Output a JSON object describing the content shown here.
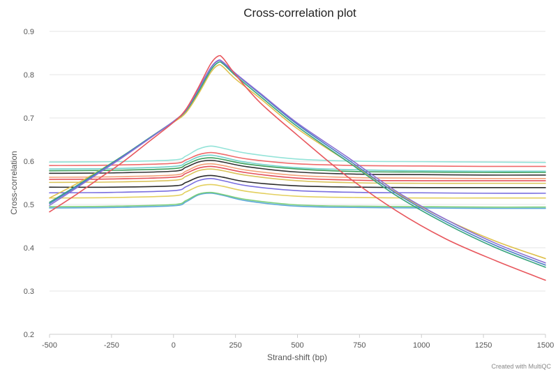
{
  "chart_data": {
    "type": "line",
    "title": "Cross-correlation plot",
    "xlabel": "Strand-shift (bp)",
    "ylabel": "Cross-correlation",
    "xlim": [
      -500,
      1500
    ],
    "ylim": [
      0.2,
      0.9
    ],
    "x_ticks": [
      "-500",
      "-250",
      "0",
      "250",
      "500",
      "750",
      "1000",
      "1250",
      "1500"
    ],
    "y_ticks": [
      "0.2",
      "0.3",
      "0.4",
      "0.5",
      "0.6",
      "0.7",
      "0.8",
      "0.9"
    ],
    "grid": true,
    "legend": "none",
    "credit": "Created with MultiQC",
    "series": [
      {
        "color": "#e8575d",
        "x": [
          -500,
          -400,
          -300,
          -200,
          -100,
          0,
          50,
          100,
          150,
          180,
          200,
          250,
          350,
          500,
          700,
          900,
          1100,
          1300,
          1500
        ],
        "values": [
          0.483,
          0.52,
          0.56,
          0.6,
          0.645,
          0.69,
          0.72,
          0.77,
          0.825,
          0.843,
          0.838,
          0.8,
          0.735,
          0.66,
          0.565,
          0.485,
          0.42,
          0.37,
          0.325
        ]
      },
      {
        "color": "#4a7fc4",
        "x": [
          -500,
          -400,
          -300,
          -200,
          -100,
          0,
          50,
          100,
          150,
          180,
          200,
          250,
          350,
          500,
          700,
          900,
          1100,
          1300,
          1500
        ],
        "values": [
          0.502,
          0.538,
          0.575,
          0.613,
          0.652,
          0.692,
          0.718,
          0.765,
          0.815,
          0.832,
          0.828,
          0.802,
          0.755,
          0.685,
          0.605,
          0.525,
          0.46,
          0.405,
          0.36
        ]
      },
      {
        "color": "#37a37c",
        "x": [
          -500,
          -400,
          -300,
          -200,
          -100,
          0,
          50,
          100,
          150,
          180,
          200,
          250,
          350,
          500,
          700,
          900,
          1100,
          1300,
          1500
        ],
        "values": [
          0.505,
          0.54,
          0.577,
          0.614,
          0.653,
          0.692,
          0.716,
          0.76,
          0.81,
          0.828,
          0.825,
          0.798,
          0.75,
          0.68,
          0.6,
          0.52,
          0.455,
          0.4,
          0.355
        ]
      },
      {
        "color": "#dec04c",
        "x": [
          -500,
          -400,
          -300,
          -200,
          -100,
          0,
          50,
          100,
          150,
          180,
          200,
          250,
          350,
          500,
          700,
          900,
          1100,
          1300,
          1500
        ],
        "values": [
          0.515,
          0.545,
          0.578,
          0.614,
          0.652,
          0.69,
          0.712,
          0.755,
          0.805,
          0.822,
          0.818,
          0.79,
          0.745,
          0.675,
          0.6,
          0.527,
          0.465,
          0.415,
          0.375
        ]
      },
      {
        "color": "#8a6fd4",
        "x": [
          -500,
          -400,
          -300,
          -200,
          -100,
          0,
          50,
          100,
          150,
          180,
          200,
          250,
          350,
          500,
          700,
          900,
          1100,
          1300,
          1500
        ],
        "values": [
          0.498,
          0.535,
          0.573,
          0.611,
          0.651,
          0.692,
          0.718,
          0.766,
          0.816,
          0.833,
          0.829,
          0.803,
          0.757,
          0.688,
          0.61,
          0.53,
          0.465,
          0.41,
          0.365
        ]
      },
      {
        "color": "#93e3d8",
        "x": [
          -500,
          -250,
          0,
          50,
          100,
          150,
          200,
          300,
          500,
          750,
          1000,
          1250,
          1500
        ],
        "values": [
          0.598,
          0.599,
          0.603,
          0.612,
          0.628,
          0.635,
          0.63,
          0.618,
          0.605,
          0.6,
          0.599,
          0.598,
          0.597
        ]
      },
      {
        "color": "#ef6a6a",
        "x": [
          -500,
          -250,
          0,
          50,
          100,
          150,
          200,
          300,
          500,
          750,
          1000,
          1250,
          1500
        ],
        "values": [
          0.59,
          0.591,
          0.595,
          0.603,
          0.615,
          0.62,
          0.616,
          0.605,
          0.594,
          0.59,
          0.589,
          0.588,
          0.588
        ]
      },
      {
        "color": "#6fd1c9",
        "x": [
          -500,
          -250,
          0,
          50,
          100,
          150,
          200,
          300,
          500,
          750,
          1000,
          1250,
          1500
        ],
        "values": [
          0.582,
          0.583,
          0.588,
          0.597,
          0.61,
          0.614,
          0.609,
          0.597,
          0.585,
          0.58,
          0.578,
          0.577,
          0.577
        ]
      },
      {
        "color": "#3a9e5a",
        "x": [
          -500,
          -250,
          0,
          50,
          100,
          150,
          200,
          300,
          500,
          750,
          1000,
          1250,
          1500
        ],
        "values": [
          0.578,
          0.579,
          0.583,
          0.592,
          0.604,
          0.608,
          0.604,
          0.593,
          0.582,
          0.576,
          0.575,
          0.574,
          0.574
        ]
      },
      {
        "color": "#333333",
        "x": [
          -500,
          -250,
          0,
          50,
          100,
          150,
          200,
          300,
          500,
          750,
          1000,
          1250,
          1500
        ],
        "values": [
          0.572,
          0.573,
          0.577,
          0.586,
          0.598,
          0.602,
          0.598,
          0.587,
          0.575,
          0.57,
          0.569,
          0.568,
          0.568
        ]
      },
      {
        "color": "#f2a27a",
        "x": [
          -500,
          -250,
          0,
          50,
          100,
          150,
          200,
          300,
          500,
          750,
          1000,
          1250,
          1500
        ],
        "values": [
          0.563,
          0.564,
          0.568,
          0.577,
          0.59,
          0.594,
          0.59,
          0.579,
          0.567,
          0.562,
          0.561,
          0.56,
          0.56
        ]
      },
      {
        "color": "#e4515a",
        "x": [
          -500,
          -250,
          0,
          50,
          100,
          150,
          200,
          300,
          500,
          750,
          1000,
          1250,
          1500
        ],
        "values": [
          0.558,
          0.559,
          0.563,
          0.572,
          0.584,
          0.588,
          0.584,
          0.573,
          0.561,
          0.556,
          0.555,
          0.555,
          0.555
        ]
      },
      {
        "color": "#d9c35a",
        "x": [
          -500,
          -250,
          0,
          50,
          100,
          150,
          200,
          300,
          500,
          750,
          1000,
          1250,
          1500
        ],
        "values": [
          0.551,
          0.552,
          0.556,
          0.565,
          0.578,
          0.582,
          0.578,
          0.567,
          0.555,
          0.55,
          0.549,
          0.549,
          0.549
        ]
      },
      {
        "color": "#2b2b2b",
        "x": [
          -500,
          -250,
          0,
          50,
          100,
          150,
          200,
          300,
          500,
          750,
          1000,
          1250,
          1500
        ],
        "values": [
          0.54,
          0.54,
          0.543,
          0.551,
          0.563,
          0.567,
          0.563,
          0.552,
          0.543,
          0.54,
          0.539,
          0.539,
          0.539
        ]
      },
      {
        "color": "#7a6fe0",
        "x": [
          -500,
          -250,
          0,
          50,
          100,
          150,
          200,
          300,
          500,
          750,
          1000,
          1250,
          1500
        ],
        "values": [
          0.527,
          0.528,
          0.532,
          0.541,
          0.555,
          0.56,
          0.555,
          0.543,
          0.532,
          0.528,
          0.527,
          0.526,
          0.526
        ]
      },
      {
        "color": "#e3cf5e",
        "x": [
          -500,
          -250,
          0,
          50,
          100,
          150,
          200,
          300,
          500,
          750,
          1000,
          1250,
          1500
        ],
        "values": [
          0.515,
          0.516,
          0.52,
          0.529,
          0.542,
          0.546,
          0.542,
          0.53,
          0.519,
          0.516,
          0.515,
          0.515,
          0.515
        ]
      },
      {
        "color": "#7ccf7a",
        "x": [
          -500,
          -250,
          0,
          50,
          100,
          150,
          200,
          300,
          500,
          750,
          1000,
          1250,
          1500
        ],
        "values": [
          0.495,
          0.496,
          0.5,
          0.509,
          0.524,
          0.528,
          0.523,
          0.511,
          0.499,
          0.496,
          0.495,
          0.494,
          0.494
        ]
      },
      {
        "color": "#5ba8d8",
        "x": [
          -500,
          -250,
          0,
          50,
          100,
          150,
          200,
          300,
          500,
          750,
          1000,
          1250,
          1500
        ],
        "values": [
          0.492,
          0.493,
          0.497,
          0.506,
          0.522,
          0.526,
          0.521,
          0.508,
          0.496,
          0.493,
          0.492,
          0.491,
          0.491
        ]
      }
    ]
  }
}
